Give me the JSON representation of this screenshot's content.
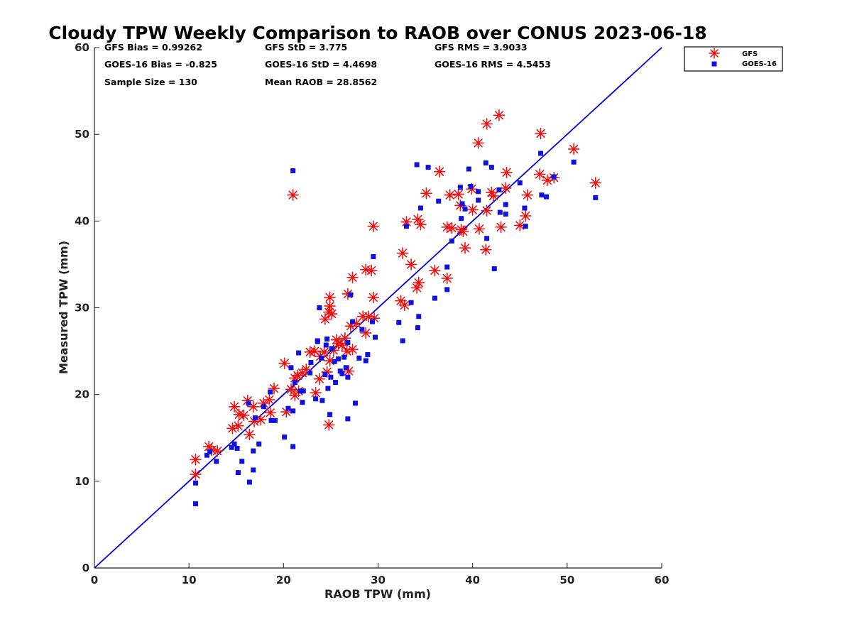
{
  "chart_data": {
    "type": "scatter",
    "title": "Cloudy TPW Weekly Comparison to RAOB over CONUS 2023-06-18",
    "xlabel": "RAOB TPW (mm)",
    "ylabel": "Measured TPW (mm)",
    "xlim": [
      0,
      60
    ],
    "ylim": [
      0,
      60
    ],
    "xticks": [
      0,
      10,
      20,
      30,
      40,
      50,
      60
    ],
    "yticks": [
      0,
      10,
      20,
      30,
      40,
      50,
      60
    ],
    "grid": false,
    "legend_position": "top-right outside",
    "reference_line": {
      "type": "one-to-one",
      "color": "#0000dd"
    },
    "stats": {
      "gfs_bias": "GFS Bias = 0.99262",
      "gfs_std": "GFS StD = 3.775",
      "gfs_rms": "GFS RMS = 3.9033",
      "goes_bias": "GOES-16 Bias = -0.825",
      "goes_std": "GOES-16 StD = 4.4698",
      "goes_rms": "GOES-16 RMS = 4.5453",
      "sample_size": "Sample Size = 130",
      "mean_raob": "Mean RAOB = 28.8562"
    },
    "series": [
      {
        "name": "GFS",
        "marker": "asterisk",
        "color": "#ee1111",
        "points": [
          [
            10.7,
            12.5
          ],
          [
            10.7,
            10.8
          ],
          [
            12.1,
            14.0
          ],
          [
            12.4,
            13.6
          ],
          [
            13.0,
            13.5
          ],
          [
            14.6,
            16.1
          ],
          [
            14.8,
            18.6
          ],
          [
            15.2,
            16.4
          ],
          [
            15.3,
            17.7
          ],
          [
            15.8,
            17.6
          ],
          [
            16.2,
            19.3
          ],
          [
            16.4,
            15.4
          ],
          [
            16.8,
            18.6
          ],
          [
            16.9,
            16.9
          ],
          [
            17.6,
            17.1
          ],
          [
            17.9,
            19.0
          ],
          [
            18.5,
            19.4
          ],
          [
            18.6,
            17.9
          ],
          [
            19.0,
            20.7
          ],
          [
            20.1,
            23.6
          ],
          [
            20.3,
            18.0
          ],
          [
            20.8,
            20.6
          ],
          [
            21.2,
            21.9
          ],
          [
            21.2,
            19.9
          ],
          [
            21.5,
            22.2
          ],
          [
            21.6,
            20.4
          ],
          [
            22.0,
            22.5
          ],
          [
            22.4,
            22.9
          ],
          [
            22.8,
            24.9
          ],
          [
            23.3,
            25.0
          ],
          [
            23.4,
            20.2
          ],
          [
            23.8,
            21.8
          ],
          [
            23.9,
            24.4
          ],
          [
            24.3,
            24.9
          ],
          [
            24.4,
            28.7
          ],
          [
            24.8,
            29.5
          ],
          [
            24.9,
            31.2
          ],
          [
            24.9,
            30.2
          ],
          [
            25.1,
            29.3
          ],
          [
            24.8,
            16.5
          ],
          [
            24.6,
            22.6
          ],
          [
            24.9,
            23.9
          ],
          [
            25.3,
            25.1
          ],
          [
            25.6,
            26.3
          ],
          [
            25.8,
            25.9
          ],
          [
            26.2,
            25.7
          ],
          [
            26.5,
            26.5
          ],
          [
            26.7,
            25.0
          ],
          [
            26.8,
            31.6
          ],
          [
            26.9,
            22.7
          ],
          [
            27.1,
            27.9
          ],
          [
            27.3,
            33.5
          ],
          [
            27.3,
            25.2
          ],
          [
            27.7,
            28.2
          ],
          [
            28.4,
            29.0
          ],
          [
            28.7,
            34.4
          ],
          [
            28.7,
            27.1
          ],
          [
            29.0,
            29.0
          ],
          [
            29.3,
            34.3
          ],
          [
            29.5,
            39.4
          ],
          [
            29.5,
            31.2
          ],
          [
            29.6,
            28.8
          ],
          [
            32.4,
            30.8
          ],
          [
            32.6,
            36.3
          ],
          [
            32.8,
            30.3
          ],
          [
            33.0,
            39.9
          ],
          [
            33.5,
            35.0
          ],
          [
            34.1,
            32.3
          ],
          [
            34.2,
            40.2
          ],
          [
            34.3,
            32.9
          ],
          [
            34.5,
            39.6
          ],
          [
            35.1,
            43.2
          ],
          [
            36.0,
            34.3
          ],
          [
            36.5,
            45.7
          ],
          [
            37.3,
            39.3
          ],
          [
            37.3,
            33.4
          ],
          [
            37.6,
            43.0
          ],
          [
            37.8,
            39.2
          ],
          [
            38.5,
            43.1
          ],
          [
            38.7,
            41.8
          ],
          [
            38.8,
            39.0
          ],
          [
            39.0,
            38.8
          ],
          [
            39.2,
            36.9
          ],
          [
            39.9,
            43.7
          ],
          [
            40.0,
            41.3
          ],
          [
            40.6,
            49.0
          ],
          [
            40.7,
            39.1
          ],
          [
            41.4,
            36.7
          ],
          [
            41.5,
            41.2
          ],
          [
            41.5,
            51.2
          ],
          [
            42.0,
            43.3
          ],
          [
            42.2,
            42.9
          ],
          [
            42.8,
            52.2
          ],
          [
            43.0,
            39.3
          ],
          [
            43.5,
            43.8
          ],
          [
            43.6,
            45.6
          ],
          [
            45.0,
            39.5
          ],
          [
            45.6,
            40.6
          ],
          [
            45.8,
            43.0
          ],
          [
            47.1,
            45.4
          ],
          [
            47.2,
            50.1
          ],
          [
            47.9,
            44.7
          ],
          [
            48.6,
            45.0
          ],
          [
            50.7,
            48.3
          ],
          [
            53.0,
            44.4
          ],
          [
            21.0,
            43.0
          ]
        ]
      },
      {
        "name": "GOES-16",
        "marker": "square",
        "color": "#1111dd",
        "points": [
          [
            10.7,
            9.8
          ],
          [
            10.7,
            7.4
          ],
          [
            11.9,
            13.0
          ],
          [
            12.2,
            13.4
          ],
          [
            12.9,
            12.3
          ],
          [
            14.5,
            13.9
          ],
          [
            14.8,
            14.3
          ],
          [
            15.1,
            13.8
          ],
          [
            15.2,
            11.0
          ],
          [
            15.6,
            12.3
          ],
          [
            16.3,
            19.0
          ],
          [
            16.4,
            9.9
          ],
          [
            16.8,
            13.5
          ],
          [
            16.8,
            11.3
          ],
          [
            17.0,
            17.3
          ],
          [
            17.4,
            14.3
          ],
          [
            17.9,
            18.6
          ],
          [
            18.6,
            20.3
          ],
          [
            18.7,
            17.0
          ],
          [
            19.1,
            17.0
          ],
          [
            20.1,
            15.1
          ],
          [
            20.5,
            18.4
          ],
          [
            20.8,
            23.1
          ],
          [
            21.0,
            14.0
          ],
          [
            21.0,
            18.1
          ],
          [
            21.2,
            21.4
          ],
          [
            21.6,
            24.8
          ],
          [
            21.8,
            20.4
          ],
          [
            22.0,
            19.1
          ],
          [
            22.1,
            20.4
          ],
          [
            22.8,
            22.5
          ],
          [
            22.9,
            23.7
          ],
          [
            23.4,
            19.5
          ],
          [
            23.6,
            26.1
          ],
          [
            23.8,
            30.0
          ],
          [
            24.0,
            24.2
          ],
          [
            24.1,
            19.3
          ],
          [
            24.4,
            22.3
          ],
          [
            24.5,
            25.7
          ],
          [
            24.6,
            26.4
          ],
          [
            24.7,
            20.7
          ],
          [
            24.9,
            17.7
          ],
          [
            25.0,
            22.0
          ],
          [
            25.1,
            25.3
          ],
          [
            25.4,
            23.8
          ],
          [
            25.5,
            21.4
          ],
          [
            25.8,
            24.1
          ],
          [
            26.0,
            22.7
          ],
          [
            26.2,
            22.4
          ],
          [
            26.4,
            24.3
          ],
          [
            26.6,
            23.1
          ],
          [
            26.8,
            26.0
          ],
          [
            26.8,
            22.0
          ],
          [
            26.8,
            17.2
          ],
          [
            27.1,
            31.5
          ],
          [
            27.3,
            28.4
          ],
          [
            27.6,
            19.0
          ],
          [
            28.0,
            24.2
          ],
          [
            28.3,
            27.5
          ],
          [
            28.7,
            23.9
          ],
          [
            28.9,
            24.6
          ],
          [
            29.4,
            28.4
          ],
          [
            29.5,
            35.9
          ],
          [
            29.7,
            26.6
          ],
          [
            32.2,
            28.3
          ],
          [
            32.6,
            26.2
          ],
          [
            33.0,
            39.4
          ],
          [
            33.5,
            30.6
          ],
          [
            34.1,
            46.5
          ],
          [
            34.3,
            29.0
          ],
          [
            34.2,
            27.7
          ],
          [
            34.5,
            41.5
          ],
          [
            35.3,
            46.2
          ],
          [
            36.0,
            31.1
          ],
          [
            36.4,
            42.3
          ],
          [
            37.3,
            32.1
          ],
          [
            37.3,
            34.7
          ],
          [
            37.8,
            37.7
          ],
          [
            38.7,
            43.9
          ],
          [
            38.8,
            40.3
          ],
          [
            38.9,
            42.0
          ],
          [
            39.2,
            41.4
          ],
          [
            39.6,
            46.0
          ],
          [
            39.8,
            44.0
          ],
          [
            40.6,
            43.4
          ],
          [
            40.6,
            42.4
          ],
          [
            41.4,
            46.7
          ],
          [
            41.5,
            38.0
          ],
          [
            42.0,
            46.2
          ],
          [
            42.3,
            34.5
          ],
          [
            42.8,
            43.6
          ],
          [
            42.9,
            41.0
          ],
          [
            43.5,
            41.9
          ],
          [
            43.5,
            40.8
          ],
          [
            45.0,
            44.4
          ],
          [
            45.5,
            41.5
          ],
          [
            45.6,
            39.4
          ],
          [
            47.2,
            47.8
          ],
          [
            47.3,
            43.0
          ],
          [
            47.8,
            42.8
          ],
          [
            48.6,
            45.1
          ],
          [
            50.7,
            46.8
          ],
          [
            53.0,
            42.7
          ],
          [
            21.0,
            45.8
          ],
          [
            23.6,
            26.2
          ]
        ]
      }
    ]
  }
}
